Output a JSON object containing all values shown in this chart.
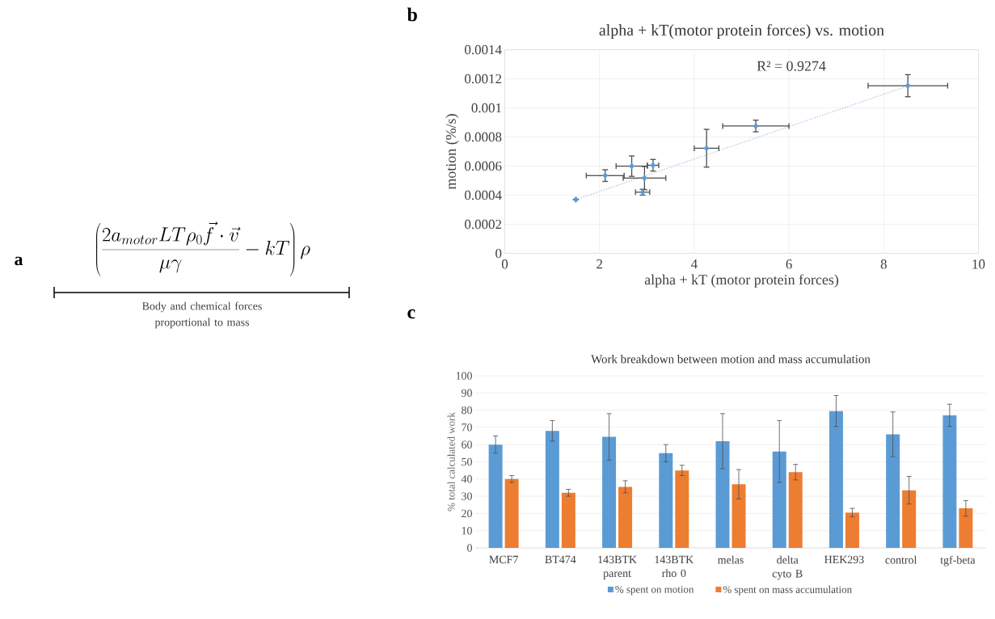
{
  "chart_data": [
    {
      "type": "other",
      "annotations": [
        "a",
        "\\left(\\frac{2a_{motor}LT\\rho_0\\vec{f}\\cdot\\vec{v}}{\\mu\\gamma}-kT\\right)\\rho",
        "Body and chemical forces proportional to mass"
      ]
    },
    {
      "type": "scatter",
      "title": "alpha + kT(motor protein forces) vs. motion",
      "xlabel": "alpha + kT (motor protein forces)",
      "ylabel": "motion (%/s)",
      "series": [
        {
          "type": "scatter",
          "color": "#5b9bd5",
          "marker": "diamond",
          "x": [
            1.5,
            2.12,
            2.68,
            3.13,
            2.95,
            2.91,
            4.26,
            5.3,
            8.51
          ],
          "values": [
            0.00037,
            0.000535,
            0.0006,
            0.000606,
            0.000518,
            0.000421,
            0.000723,
            0.000876,
            0.001153
          ],
          "errors": [
            null,
            4e-05,
            7e-05,
            4e-05,
            8e-05,
            2e-05,
            0.00013,
            4e-05,
            7.6e-05
          ],
          "xerrors": [
            null,
            0.4,
            0.33,
            0.12,
            0.45,
            0.15,
            0.26,
            0.7,
            0.84
          ]
        },
        {
          "type": "line",
          "color": "#9dc3e6",
          "x": [
            1.5,
            8.5
          ],
          "values": [
            0.00037,
            0.00115
          ],
          "line_style": "dotted"
        }
      ],
      "xlim": [
        0,
        10
      ],
      "xticks": [
        0,
        2,
        4,
        6,
        8,
        10
      ],
      "ylim": [
        0,
        0.0014
      ],
      "yticks": [
        0,
        0.0002,
        0.0004,
        0.0006,
        0.0008,
        0.001,
        0.0012,
        0.0014
      ],
      "grid": true,
      "annotations": [
        "b",
        "R² = 0.9274"
      ]
    },
    {
      "type": "bar",
      "title": "Work breakdown between motion and mass accumulation",
      "ylabel": "% total calculated work",
      "categories": [
        "MCF7",
        "BT474",
        "143BTK parent",
        "143BTK rho 0",
        "melas",
        "delta cyto B",
        "HEK293",
        "control",
        "tgf-beta"
      ],
      "series": [
        {
          "name": "% spent on motion",
          "color": "#5b9bd5",
          "values": [
            60,
            68,
            64.5,
            55,
            62,
            56,
            79.5,
            66,
            77
          ],
          "errors": [
            5,
            6,
            13.5,
            5,
            16,
            18,
            9,
            13,
            6.5
          ]
        },
        {
          "name": "% spent on mass accumulation",
          "color": "#ed7d31",
          "values": [
            40,
            32,
            35.5,
            45,
            37,
            44,
            20.5,
            33.5,
            23
          ],
          "errors": [
            2,
            2,
            3.5,
            3,
            8.5,
            4.5,
            2.5,
            8,
            4.5
          ]
        }
      ],
      "ylim": [
        0,
        100
      ],
      "yticks": [
        0,
        10,
        20,
        30,
        40,
        50,
        60,
        70,
        80,
        90,
        100
      ],
      "grid": "y",
      "legend": "bottom",
      "annotations": [
        "c"
      ]
    }
  ]
}
